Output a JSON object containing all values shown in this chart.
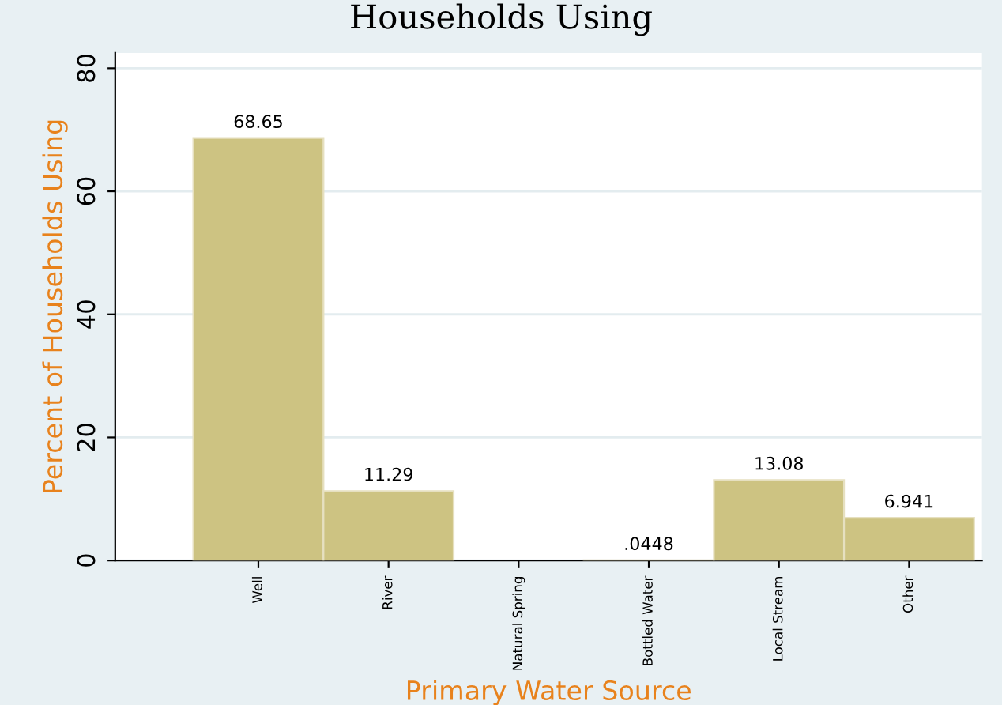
{
  "chart_data": {
    "type": "bar",
    "title": "Households Using",
    "xlabel": "Primary Water Source",
    "ylabel": "Percent of Households Using",
    "categories": [
      "Well",
      "River",
      "Natural Spring",
      "Bottled Water",
      "Local Stream",
      "Other"
    ],
    "values": [
      68.65,
      11.29,
      null,
      0.0448,
      13.08,
      6.941
    ],
    "value_labels": [
      "68.65",
      "11.29",
      null,
      ".0448",
      "13.08",
      "6.941"
    ],
    "color": "#cdc382",
    "ylim": [
      0,
      82.5
    ],
    "yticks": [
      0,
      20,
      40,
      60,
      80
    ],
    "grid": "y",
    "legend": false
  }
}
